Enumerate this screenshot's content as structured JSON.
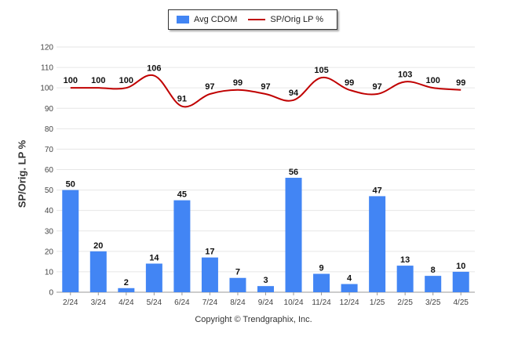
{
  "chart_data": {
    "type": "bar",
    "categories": [
      "2/24",
      "3/24",
      "4/24",
      "5/24",
      "6/24",
      "7/24",
      "8/24",
      "9/24",
      "10/24",
      "11/24",
      "12/24",
      "1/25",
      "2/25",
      "3/25",
      "4/25"
    ],
    "series": [
      {
        "name": "Avg CDOM",
        "type": "bar",
        "color": "#4285F4",
        "values": [
          50,
          20,
          2,
          14,
          45,
          17,
          7,
          3,
          56,
          9,
          4,
          47,
          13,
          8,
          10
        ]
      },
      {
        "name": "SP/Orig LP %",
        "type": "line",
        "color": "#C00000",
        "values": [
          100,
          100,
          100,
          106,
          91,
          97,
          99,
          97,
          94,
          105,
          99,
          97,
          103,
          100,
          99
        ]
      }
    ],
    "ylabel": "SP/Orig. LP %",
    "ylim": [
      0,
      120
    ],
    "yticks": [
      0,
      10,
      20,
      30,
      40,
      50,
      60,
      70,
      80,
      90,
      100,
      110,
      120
    ],
    "grid": true,
    "legend": "top-center"
  },
  "footer": {
    "copyright": "Copyright © Trendgraphix, Inc."
  }
}
